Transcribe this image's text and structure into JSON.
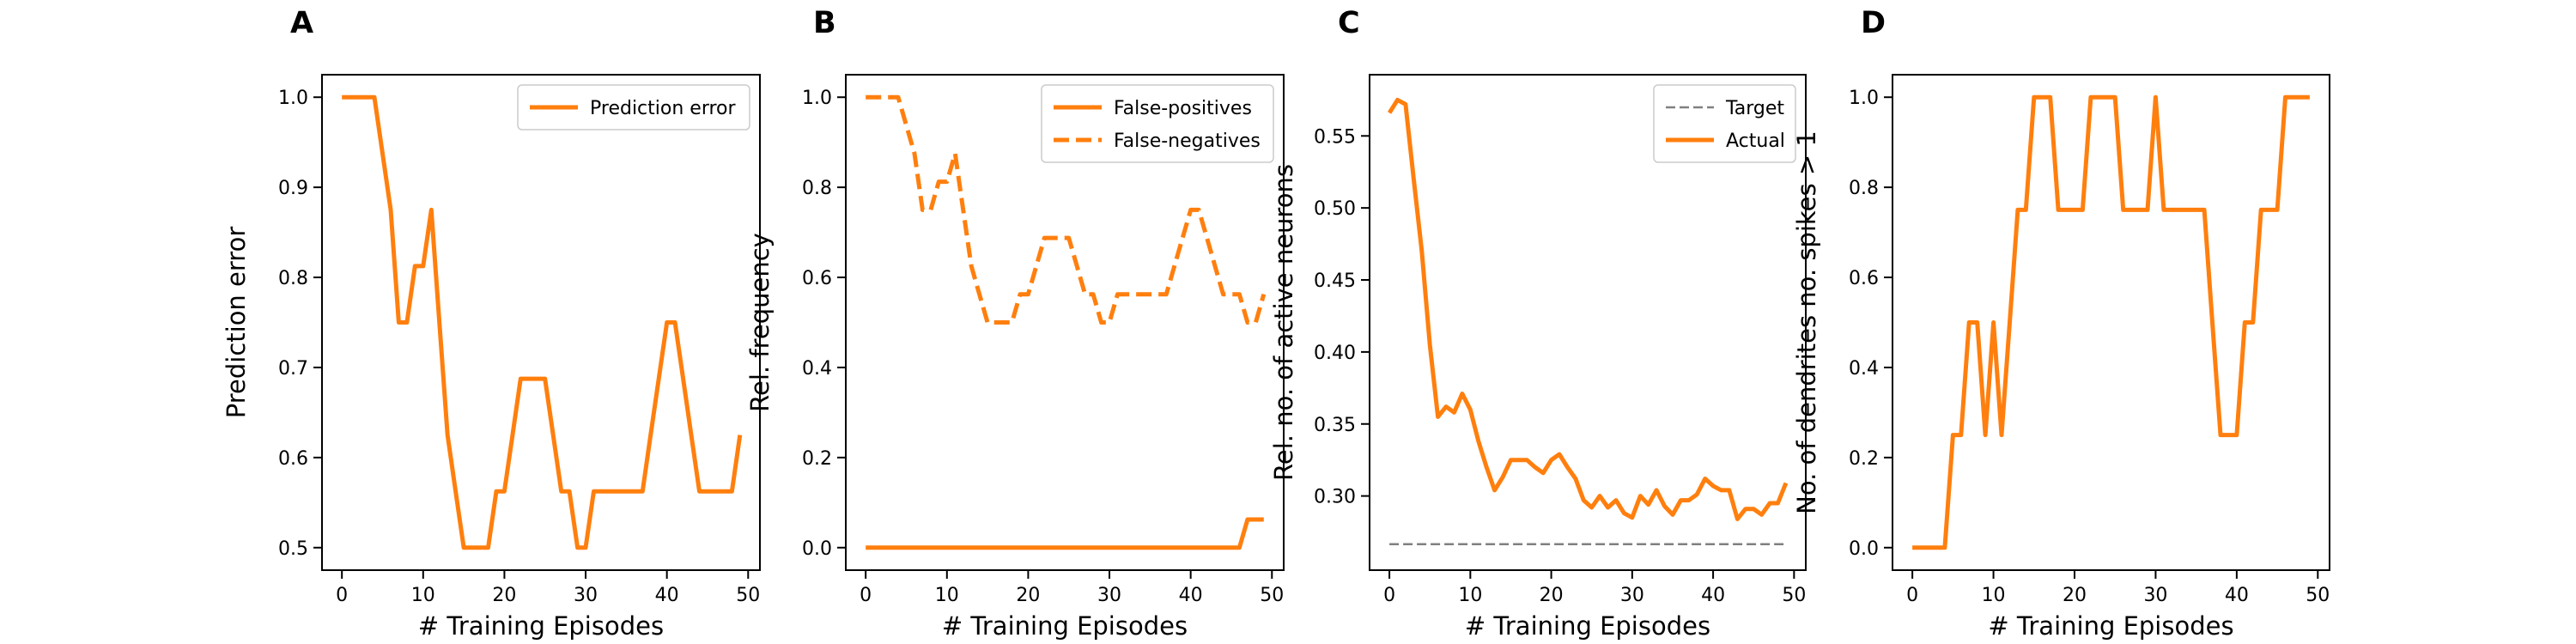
{
  "colors": {
    "accent": "#ff7f0e",
    "target": "#808080"
  },
  "chart_data": [
    {
      "panel": "A",
      "type": "line",
      "xlabel": "# Training Episodes",
      "ylabel": "Prediction error",
      "xlim": [
        -2.45,
        51.45
      ],
      "ylim": [
        0.475,
        1.025
      ],
      "xticks": [
        0,
        10,
        20,
        30,
        40,
        50
      ],
      "yticks": [
        0.5,
        0.6,
        0.7,
        0.8,
        0.9,
        1.0
      ],
      "ytick_labels": [
        "0.5",
        "0.6",
        "0.7",
        "0.8",
        "0.9",
        "1.0"
      ],
      "legend": "top-right",
      "series": [
        {
          "name": "Prediction error",
          "style": "solid",
          "x": [
            0,
            1,
            2,
            3,
            4,
            5,
            6,
            7,
            8,
            9,
            10,
            11,
            12,
            13,
            14,
            15,
            16,
            17,
            18,
            19,
            20,
            21,
            22,
            23,
            24,
            25,
            26,
            27,
            28,
            29,
            30,
            31,
            32,
            33,
            34,
            35,
            36,
            37,
            38,
            39,
            40,
            41,
            42,
            43,
            44,
            45,
            46,
            47,
            48,
            49
          ],
          "y": [
            1.0,
            1.0,
            1.0,
            1.0,
            1.0,
            0.9375,
            0.875,
            0.75,
            0.75,
            0.8125,
            0.8125,
            0.875,
            0.75,
            0.625,
            0.5625,
            0.5,
            0.5,
            0.5,
            0.5,
            0.5625,
            0.5625,
            0.625,
            0.6875,
            0.6875,
            0.6875,
            0.6875,
            0.625,
            0.5625,
            0.5625,
            0.5,
            0.5,
            0.5625,
            0.5625,
            0.5625,
            0.5625,
            0.5625,
            0.5625,
            0.5625,
            0.625,
            0.6875,
            0.75,
            0.75,
            0.6875,
            0.625,
            0.5625,
            0.5625,
            0.5625,
            0.5625,
            0.5625,
            0.625
          ]
        }
      ]
    },
    {
      "panel": "B",
      "type": "line",
      "xlabel": "# Training Episodes",
      "ylabel": "Rel. frequency",
      "xlim": [
        -2.45,
        51.45
      ],
      "ylim": [
        -0.05,
        1.05
      ],
      "xticks": [
        0,
        10,
        20,
        30,
        40,
        50
      ],
      "yticks": [
        0.0,
        0.2,
        0.4,
        0.6,
        0.8,
        1.0
      ],
      "ytick_labels": [
        "0.0",
        "0.2",
        "0.4",
        "0.6",
        "0.8",
        "1.0"
      ],
      "legend": "top-right",
      "series": [
        {
          "name": "False-positives",
          "style": "solid",
          "x": [
            0,
            1,
            2,
            3,
            4,
            5,
            6,
            7,
            8,
            9,
            10,
            11,
            12,
            13,
            14,
            15,
            16,
            17,
            18,
            19,
            20,
            21,
            22,
            23,
            24,
            25,
            26,
            27,
            28,
            29,
            30,
            31,
            32,
            33,
            34,
            35,
            36,
            37,
            38,
            39,
            40,
            41,
            42,
            43,
            44,
            45,
            46,
            47,
            48,
            49
          ],
          "y": [
            0,
            0,
            0,
            0,
            0,
            0,
            0,
            0,
            0,
            0,
            0,
            0,
            0,
            0,
            0,
            0,
            0,
            0,
            0,
            0,
            0,
            0,
            0,
            0,
            0,
            0,
            0,
            0,
            0,
            0,
            0,
            0,
            0,
            0,
            0,
            0,
            0,
            0,
            0,
            0,
            0,
            0,
            0,
            0,
            0,
            0,
            0,
            0.0625,
            0.0625,
            0.0625
          ]
        },
        {
          "name": "False-negatives",
          "style": "dashed",
          "x": [
            0,
            1,
            2,
            3,
            4,
            5,
            6,
            7,
            8,
            9,
            10,
            11,
            12,
            13,
            14,
            15,
            16,
            17,
            18,
            19,
            20,
            21,
            22,
            23,
            24,
            25,
            26,
            27,
            28,
            29,
            30,
            31,
            32,
            33,
            34,
            35,
            36,
            37,
            38,
            39,
            40,
            41,
            42,
            43,
            44,
            45,
            46,
            47,
            48,
            49
          ],
          "y": [
            1.0,
            1.0,
            1.0,
            1.0,
            1.0,
            0.9375,
            0.875,
            0.75,
            0.75,
            0.8125,
            0.8125,
            0.875,
            0.75,
            0.625,
            0.5625,
            0.5,
            0.5,
            0.5,
            0.5,
            0.5625,
            0.5625,
            0.625,
            0.6875,
            0.6875,
            0.6875,
            0.6875,
            0.625,
            0.5625,
            0.5625,
            0.5,
            0.5,
            0.5625,
            0.5625,
            0.5625,
            0.5625,
            0.5625,
            0.5625,
            0.5625,
            0.625,
            0.6875,
            0.75,
            0.75,
            0.6875,
            0.625,
            0.5625,
            0.5625,
            0.5625,
            0.5,
            0.5,
            0.5625
          ]
        }
      ]
    },
    {
      "panel": "C",
      "type": "line",
      "xlabel": "# Training Episodes",
      "ylabel": "Rel. no. of active neurons",
      "xlim": [
        -2.45,
        51.45
      ],
      "ylim": [
        0.2485,
        0.5925
      ],
      "xticks": [
        0,
        10,
        20,
        30,
        40,
        50
      ],
      "yticks": [
        0.3,
        0.35,
        0.4,
        0.45,
        0.5,
        0.55
      ],
      "ytick_labels": [
        "0.30",
        "0.35",
        "0.40",
        "0.45",
        "0.50",
        "0.55"
      ],
      "legend": "top-right",
      "series": [
        {
          "name": "Target",
          "style": "dashed-thin",
          "x": [
            0,
            49
          ],
          "y": [
            0.2665,
            0.2665
          ]
        },
        {
          "name": "Actual",
          "style": "solid",
          "x": [
            0,
            1,
            2,
            3,
            4,
            5,
            6,
            7,
            8,
            9,
            10,
            11,
            12,
            13,
            14,
            15,
            16,
            17,
            18,
            19,
            20,
            21,
            22,
            23,
            24,
            25,
            26,
            27,
            28,
            29,
            30,
            31,
            32,
            33,
            34,
            35,
            36,
            37,
            38,
            39,
            40,
            41,
            42,
            43,
            44,
            45,
            46,
            47,
            48,
            49
          ],
          "y": [
            0.566,
            0.575,
            0.572,
            0.52,
            0.47,
            0.405,
            0.355,
            0.362,
            0.358,
            0.371,
            0.36,
            0.338,
            0.32,
            0.304,
            0.313,
            0.325,
            0.325,
            0.325,
            0.32,
            0.316,
            0.325,
            0.329,
            0.32,
            0.312,
            0.297,
            0.292,
            0.3,
            0.292,
            0.297,
            0.288,
            0.285,
            0.3,
            0.294,
            0.304,
            0.293,
            0.287,
            0.297,
            0.297,
            0.301,
            0.312,
            0.307,
            0.304,
            0.304,
            0.284,
            0.291,
            0.291,
            0.287,
            0.295,
            0.295,
            0.309
          ]
        }
      ]
    },
    {
      "panel": "D",
      "type": "line",
      "xlabel": "# Training Episodes",
      "ylabel": "No. of dendrites no. spikes > 1",
      "xlim": [
        -2.45,
        51.45
      ],
      "ylim": [
        -0.05,
        1.05
      ],
      "xticks": [
        0,
        10,
        20,
        30,
        40,
        50
      ],
      "yticks": [
        0.0,
        0.2,
        0.4,
        0.6,
        0.8,
        1.0
      ],
      "ytick_labels": [
        "0.0",
        "0.2",
        "0.4",
        "0.6",
        "0.8",
        "1.0"
      ],
      "legend": "none",
      "series": [
        {
          "name": "",
          "style": "solid",
          "x": [
            0,
            1,
            2,
            3,
            4,
            5,
            6,
            7,
            8,
            9,
            10,
            11,
            12,
            13,
            14,
            15,
            16,
            17,
            18,
            19,
            20,
            21,
            22,
            23,
            24,
            25,
            26,
            27,
            28,
            29,
            30,
            31,
            32,
            33,
            34,
            35,
            36,
            37,
            38,
            39,
            40,
            41,
            42,
            43,
            44,
            45,
            46,
            47,
            48,
            49
          ],
          "y": [
            0,
            0,
            0,
            0,
            0,
            0.25,
            0.25,
            0.5,
            0.5,
            0.25,
            0.5,
            0.25,
            0.5,
            0.75,
            0.75,
            1.0,
            1.0,
            1.0,
            0.75,
            0.75,
            0.75,
            0.75,
            1.0,
            1.0,
            1.0,
            1.0,
            0.75,
            0.75,
            0.75,
            0.75,
            1.0,
            0.75,
            0.75,
            0.75,
            0.75,
            0.75,
            0.75,
            0.5,
            0.25,
            0.25,
            0.25,
            0.5,
            0.5,
            0.75,
            0.75,
            0.75,
            1.0,
            1.0,
            1.0,
            1.0
          ]
        }
      ]
    }
  ],
  "panels": [
    {
      "letter": "A"
    },
    {
      "letter": "B"
    },
    {
      "letter": "C"
    },
    {
      "letter": "D"
    }
  ]
}
